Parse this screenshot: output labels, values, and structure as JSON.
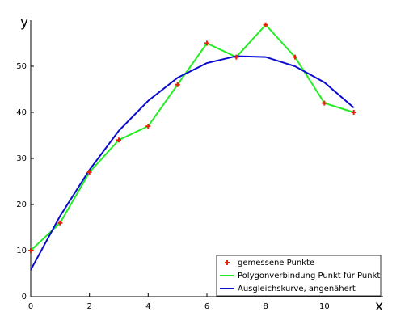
{
  "chart_data": {
    "type": "line",
    "xlabel": "x",
    "ylabel": "y",
    "xlim": [
      0,
      12
    ],
    "xticks": [
      0,
      2,
      4,
      6,
      8,
      10
    ],
    "ylim": [
      0,
      60
    ],
    "yticks": [
      0,
      10,
      20,
      30,
      40,
      50
    ],
    "legend": "lower right",
    "series": [
      {
        "name": "gemessene Punkte",
        "type": "scatter",
        "color": "#e8210c",
        "x": [
          0,
          1,
          2,
          3,
          4,
          5,
          6,
          7,
          8,
          9,
          10,
          11
        ],
        "values": [
          10,
          16,
          27,
          34,
          37,
          46,
          55,
          52,
          59,
          52,
          42,
          40
        ]
      },
      {
        "name": "Polygonverbindung Punkt für Punkt",
        "type": "line",
        "color": "#22ee22",
        "x": [
          0,
          1,
          2,
          3,
          4,
          5,
          6,
          7,
          8,
          9,
          10,
          11
        ],
        "values": [
          10,
          16,
          27,
          34,
          37,
          46,
          55,
          52,
          59,
          52,
          42,
          40
        ]
      },
      {
        "name": "Ausgleichskurve, angenähert",
        "type": "line",
        "color": "#0a0ad0",
        "x": [
          0,
          1,
          2,
          3,
          4,
          5,
          6,
          7,
          8,
          9,
          10,
          11
        ],
        "values": [
          5.8,
          17.5,
          27.5,
          36,
          42.5,
          47.5,
          50.7,
          52.2,
          52,
          50,
          46.5,
          41
        ]
      }
    ]
  }
}
